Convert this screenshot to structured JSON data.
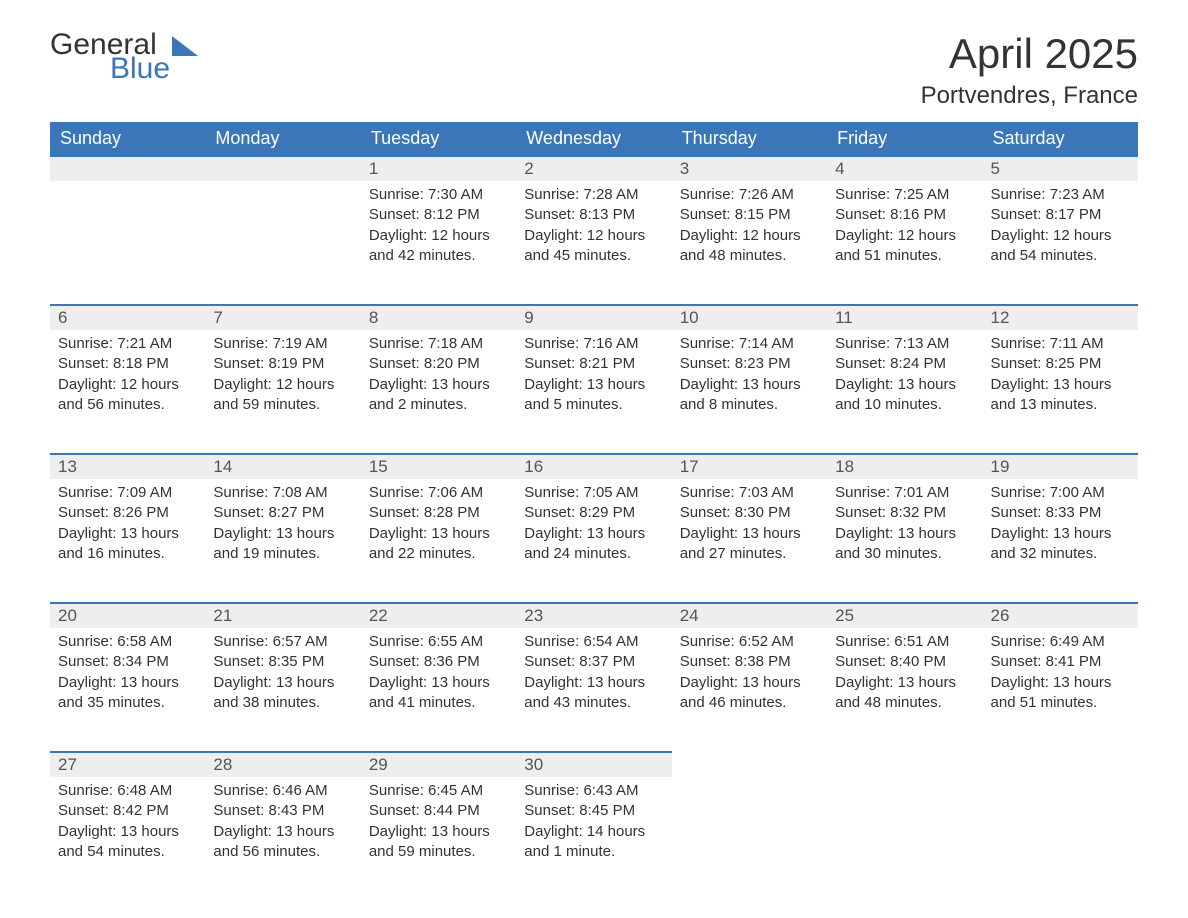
{
  "logo": {
    "line1": "General",
    "line2": "Blue"
  },
  "header": {
    "title": "April 2025",
    "location": "Portvendres, France"
  },
  "colors": {
    "brand_blue": "#3a76b8",
    "header_bg": "#3a76b8",
    "header_text": "#ffffff",
    "daynum_bg": "#eeeeee",
    "text": "#333333",
    "background": "#ffffff"
  },
  "typography": {
    "title_fontsize": 42,
    "location_fontsize": 24,
    "header_fontsize": 18,
    "daynum_fontsize": 17,
    "body_fontsize": 15
  },
  "days_header": [
    "Sunday",
    "Monday",
    "Tuesday",
    "Wednesday",
    "Thursday",
    "Friday",
    "Saturday"
  ],
  "weeks": [
    [
      {
        "day": "",
        "lines": [
          "",
          "",
          "",
          ""
        ]
      },
      {
        "day": "",
        "lines": [
          "",
          "",
          "",
          ""
        ]
      },
      {
        "day": "1",
        "lines": [
          "Sunrise: 7:30 AM",
          "Sunset: 8:12 PM",
          "Daylight: 12 hours",
          "and 42 minutes."
        ]
      },
      {
        "day": "2",
        "lines": [
          "Sunrise: 7:28 AM",
          "Sunset: 8:13 PM",
          "Daylight: 12 hours",
          "and 45 minutes."
        ]
      },
      {
        "day": "3",
        "lines": [
          "Sunrise: 7:26 AM",
          "Sunset: 8:15 PM",
          "Daylight: 12 hours",
          "and 48 minutes."
        ]
      },
      {
        "day": "4",
        "lines": [
          "Sunrise: 7:25 AM",
          "Sunset: 8:16 PM",
          "Daylight: 12 hours",
          "and 51 minutes."
        ]
      },
      {
        "day": "5",
        "lines": [
          "Sunrise: 7:23 AM",
          "Sunset: 8:17 PM",
          "Daylight: 12 hours",
          "and 54 minutes."
        ]
      }
    ],
    [
      {
        "day": "6",
        "lines": [
          "Sunrise: 7:21 AM",
          "Sunset: 8:18 PM",
          "Daylight: 12 hours",
          "and 56 minutes."
        ]
      },
      {
        "day": "7",
        "lines": [
          "Sunrise: 7:19 AM",
          "Sunset: 8:19 PM",
          "Daylight: 12 hours",
          "and 59 minutes."
        ]
      },
      {
        "day": "8",
        "lines": [
          "Sunrise: 7:18 AM",
          "Sunset: 8:20 PM",
          "Daylight: 13 hours",
          "and 2 minutes."
        ]
      },
      {
        "day": "9",
        "lines": [
          "Sunrise: 7:16 AM",
          "Sunset: 8:21 PM",
          "Daylight: 13 hours",
          "and 5 minutes."
        ]
      },
      {
        "day": "10",
        "lines": [
          "Sunrise: 7:14 AM",
          "Sunset: 8:23 PM",
          "Daylight: 13 hours",
          "and 8 minutes."
        ]
      },
      {
        "day": "11",
        "lines": [
          "Sunrise: 7:13 AM",
          "Sunset: 8:24 PM",
          "Daylight: 13 hours",
          "and 10 minutes."
        ]
      },
      {
        "day": "12",
        "lines": [
          "Sunrise: 7:11 AM",
          "Sunset: 8:25 PM",
          "Daylight: 13 hours",
          "and 13 minutes."
        ]
      }
    ],
    [
      {
        "day": "13",
        "lines": [
          "Sunrise: 7:09 AM",
          "Sunset: 8:26 PM",
          "Daylight: 13 hours",
          "and 16 minutes."
        ]
      },
      {
        "day": "14",
        "lines": [
          "Sunrise: 7:08 AM",
          "Sunset: 8:27 PM",
          "Daylight: 13 hours",
          "and 19 minutes."
        ]
      },
      {
        "day": "15",
        "lines": [
          "Sunrise: 7:06 AM",
          "Sunset: 8:28 PM",
          "Daylight: 13 hours",
          "and 22 minutes."
        ]
      },
      {
        "day": "16",
        "lines": [
          "Sunrise: 7:05 AM",
          "Sunset: 8:29 PM",
          "Daylight: 13 hours",
          "and 24 minutes."
        ]
      },
      {
        "day": "17",
        "lines": [
          "Sunrise: 7:03 AM",
          "Sunset: 8:30 PM",
          "Daylight: 13 hours",
          "and 27 minutes."
        ]
      },
      {
        "day": "18",
        "lines": [
          "Sunrise: 7:01 AM",
          "Sunset: 8:32 PM",
          "Daylight: 13 hours",
          "and 30 minutes."
        ]
      },
      {
        "day": "19",
        "lines": [
          "Sunrise: 7:00 AM",
          "Sunset: 8:33 PM",
          "Daylight: 13 hours",
          "and 32 minutes."
        ]
      }
    ],
    [
      {
        "day": "20",
        "lines": [
          "Sunrise: 6:58 AM",
          "Sunset: 8:34 PM",
          "Daylight: 13 hours",
          "and 35 minutes."
        ]
      },
      {
        "day": "21",
        "lines": [
          "Sunrise: 6:57 AM",
          "Sunset: 8:35 PM",
          "Daylight: 13 hours",
          "and 38 minutes."
        ]
      },
      {
        "day": "22",
        "lines": [
          "Sunrise: 6:55 AM",
          "Sunset: 8:36 PM",
          "Daylight: 13 hours",
          "and 41 minutes."
        ]
      },
      {
        "day": "23",
        "lines": [
          "Sunrise: 6:54 AM",
          "Sunset: 8:37 PM",
          "Daylight: 13 hours",
          "and 43 minutes."
        ]
      },
      {
        "day": "24",
        "lines": [
          "Sunrise: 6:52 AM",
          "Sunset: 8:38 PM",
          "Daylight: 13 hours",
          "and 46 minutes."
        ]
      },
      {
        "day": "25",
        "lines": [
          "Sunrise: 6:51 AM",
          "Sunset: 8:40 PM",
          "Daylight: 13 hours",
          "and 48 minutes."
        ]
      },
      {
        "day": "26",
        "lines": [
          "Sunrise: 6:49 AM",
          "Sunset: 8:41 PM",
          "Daylight: 13 hours",
          "and 51 minutes."
        ]
      }
    ],
    [
      {
        "day": "27",
        "lines": [
          "Sunrise: 6:48 AM",
          "Sunset: 8:42 PM",
          "Daylight: 13 hours",
          "and 54 minutes."
        ]
      },
      {
        "day": "28",
        "lines": [
          "Sunrise: 6:46 AM",
          "Sunset: 8:43 PM",
          "Daylight: 13 hours",
          "and 56 minutes."
        ]
      },
      {
        "day": "29",
        "lines": [
          "Sunrise: 6:45 AM",
          "Sunset: 8:44 PM",
          "Daylight: 13 hours",
          "and 59 minutes."
        ]
      },
      {
        "day": "30",
        "lines": [
          "Sunrise: 6:43 AM",
          "Sunset: 8:45 PM",
          "Daylight: 14 hours",
          "and 1 minute."
        ]
      },
      {
        "day": "",
        "lines": [
          "",
          "",
          "",
          ""
        ]
      },
      {
        "day": "",
        "lines": [
          "",
          "",
          "",
          ""
        ]
      },
      {
        "day": "",
        "lines": [
          "",
          "",
          "",
          ""
        ]
      }
    ]
  ]
}
